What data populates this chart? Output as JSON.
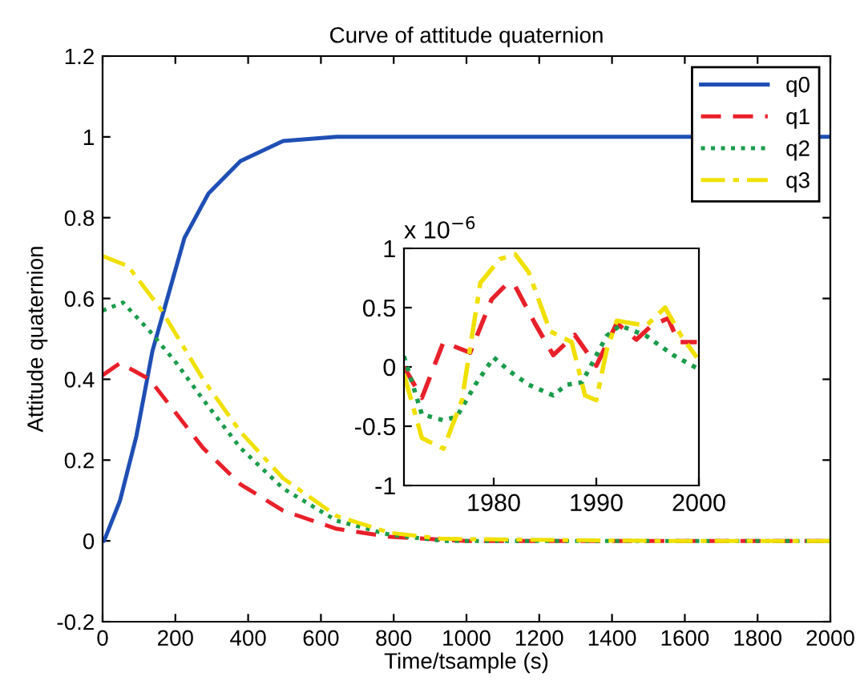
{
  "chart_data": [
    {
      "type": "line",
      "title": "Curve of attitude quaternion",
      "xlabel": "Time/tsample (s)",
      "ylabel": "Attitude quaternion",
      "xlim": [
        0,
        2000
      ],
      "xticks": [
        0,
        200,
        400,
        600,
        800,
        1000,
        1200,
        1400,
        1600,
        1800,
        2000
      ],
      "ylim": [
        -0.2,
        1.2
      ],
      "yticks": [
        -0.2,
        0,
        0.2,
        0.4,
        0.6,
        0.8,
        1,
        1.2
      ],
      "grid": false,
      "legend": "top right",
      "series": [
        {
          "name": "q0",
          "color": "#1f4fb4",
          "line_style": "solid",
          "x": [
            0,
            4,
            48,
            93,
            137,
            181,
            225,
            291,
            379,
            496,
            643,
            1000,
            1500,
            2000
          ],
          "values": [
            0,
            0,
            0.1,
            0.26,
            0.47,
            0.61,
            0.75,
            0.86,
            0.94,
            0.99,
            1.0,
            1.0,
            1.0,
            1.0
          ]
        },
        {
          "name": "q1",
          "color": "#e8202a",
          "line_style": "dashed",
          "x": [
            0,
            48,
            129,
            276,
            379,
            496,
            643,
            790,
            1000,
            1500,
            2000
          ],
          "values": [
            0.41,
            0.44,
            0.4,
            0.23,
            0.14,
            0.075,
            0.03,
            0.01,
            0,
            0,
            0
          ]
        },
        {
          "name": "q2",
          "color": "#1a9c4a",
          "line_style": "dotted",
          "x": [
            0,
            56,
            129,
            203,
            276,
            379,
            496,
            643,
            790,
            937,
            1500,
            2000
          ],
          "values": [
            0.57,
            0.59,
            0.52,
            0.44,
            0.35,
            0.23,
            0.13,
            0.05,
            0.015,
            0,
            0,
            0
          ]
        },
        {
          "name": "q3",
          "color": "#f0e000",
          "line_style": "dashdot",
          "x": [
            0,
            70,
            159,
            276,
            379,
            496,
            643,
            790,
            937,
            1500,
            2000
          ],
          "values": [
            0.705,
            0.68,
            0.575,
            0.4,
            0.27,
            0.155,
            0.062,
            0.02,
            0.005,
            0,
            0
          ]
        }
      ]
    },
    {
      "type": "line",
      "annotations": [
        "x 10$^{−6}$"
      ],
      "xlim": [
        1971.25,
        2000
      ],
      "xticks": [
        1980,
        1990,
        2000
      ],
      "ylim": [
        -1,
        1
      ],
      "yticks": [
        -1,
        -0.5,
        0,
        0.5,
        1
      ],
      "grid": false,
      "series": [
        {
          "color": "#e8202a",
          "line_style": "dashed",
          "x": [
            1971.25,
            1973,
            1975.1,
            1977.7,
            1979.8,
            1981.4,
            1982.1,
            1984,
            1985.8,
            1987.9,
            1990,
            1992,
            1993.9,
            1995.4,
            1997,
            1998,
            1999.8
          ],
          "values": [
            0,
            -0.26,
            0.21,
            0.12,
            0.57,
            0.71,
            0.68,
            0.37,
            0.1,
            0.27,
            0.01,
            0.37,
            0.23,
            0.35,
            0.41,
            0.21,
            0.21
          ]
        },
        {
          "color": "#1a9c4a",
          "line_style": "dotted",
          "x": [
            1971.25,
            1973,
            1975.1,
            1976.4,
            1978.2,
            1980,
            1981.6,
            1983.4,
            1985.8,
            1987.1,
            1988.6,
            1991,
            1992.3,
            1994.9,
            1997.5,
            1999.8
          ],
          "values": [
            0.09,
            -0.4,
            -0.45,
            -0.42,
            -0.15,
            0.08,
            -0.04,
            -0.15,
            -0.24,
            -0.15,
            -0.13,
            0.26,
            0.35,
            0.26,
            0.1,
            -0.01
          ]
        },
        {
          "color": "#f0e000",
          "line_style": "dashdot",
          "x": [
            1971.25,
            1973,
            1975.1,
            1976.9,
            1978.7,
            1980.6,
            1982.1,
            1983.4,
            1985.5,
            1987.6,
            1988.9,
            1990,
            1991,
            1992,
            1993.3,
            1994.9,
            1996.7,
            1998.3,
            1999.8
          ],
          "values": [
            -0.06,
            -0.6,
            -0.69,
            -0.28,
            0.71,
            0.91,
            0.95,
            0.8,
            0.3,
            0.21,
            -0.24,
            -0.28,
            0.14,
            0.39,
            0.37,
            0.35,
            0.5,
            0.26,
            0.08
          ]
        }
      ]
    }
  ]
}
